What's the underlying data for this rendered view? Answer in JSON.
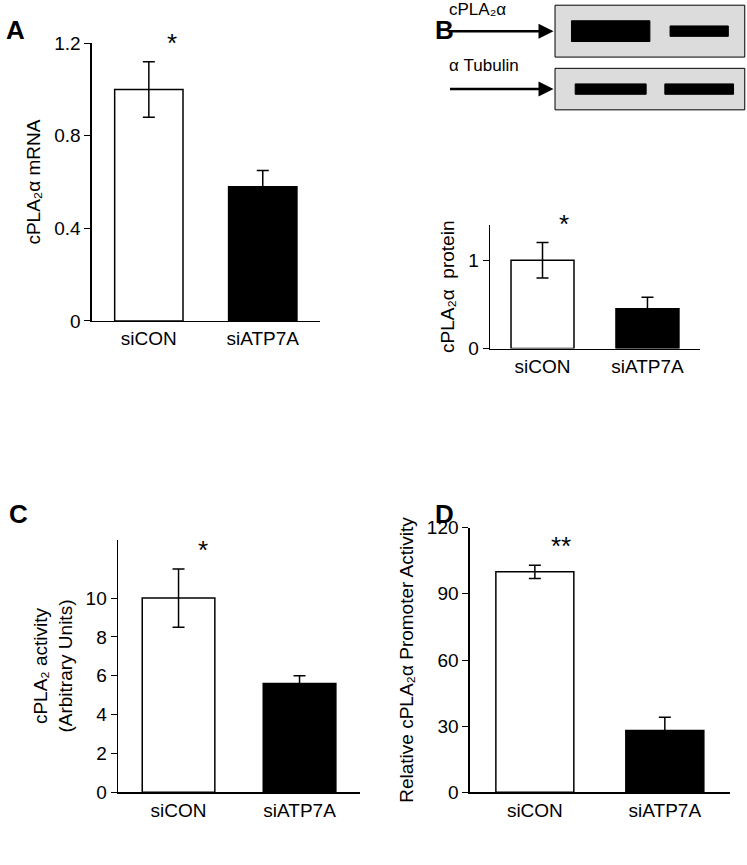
{
  "chart_data": [
    {
      "type": "bar",
      "panel": "A",
      "ylabel": "cPLA₂α mRNA",
      "categories": [
        "siCON",
        "siATP7A"
      ],
      "values": [
        1.0,
        0.58
      ],
      "errors": [
        0.12,
        0.07
      ],
      "colors": [
        "#ffffff",
        "#000000"
      ],
      "ylim": [
        0,
        1.2
      ],
      "yticks": [
        0,
        0.4,
        0.8,
        1.2
      ],
      "grid": false,
      "annotations": [
        {
          "x": "siCON",
          "text": "*"
        }
      ]
    },
    {
      "type": "bar",
      "panel": "B",
      "ylabel": "cPLA₂α  protein",
      "categories": [
        "siCON",
        "siATP7A"
      ],
      "values": [
        1.0,
        0.45
      ],
      "errors": [
        0.2,
        0.13
      ],
      "colors": [
        "#ffffff",
        "#000000"
      ],
      "ylim": [
        0,
        1.4
      ],
      "yticks": [
        0,
        1
      ],
      "grid": false,
      "annotations": [
        {
          "x": "siCON",
          "text": "*"
        }
      ],
      "blot": {
        "rows": [
          "cPLA₂α",
          "α Tubulin"
        ]
      }
    },
    {
      "type": "bar",
      "panel": "C",
      "ylabel": [
        "cPLA₂ activity",
        "(Arbitrary Units)"
      ],
      "categories": [
        "siCON",
        "siATP7A"
      ],
      "values": [
        10,
        5.6
      ],
      "errors": [
        1.5,
        0.4
      ],
      "colors": [
        "#ffffff",
        "#000000"
      ],
      "ylim": [
        0,
        13
      ],
      "yticks": [
        0,
        2,
        4,
        6,
        8,
        10
      ],
      "grid": false,
      "annotations": [
        {
          "x": "siCON",
          "text": "*"
        }
      ]
    },
    {
      "type": "bar",
      "panel": "D",
      "ylabel": "Relative cPLA₂α Promoter Activity",
      "categories": [
        "siCON",
        "siATP7A"
      ],
      "values": [
        100,
        28
      ],
      "errors": [
        3,
        6
      ],
      "colors": [
        "#ffffff",
        "#000000"
      ],
      "ylim": [
        0,
        120
      ],
      "yticks": [
        0,
        30,
        60,
        90,
        120
      ],
      "grid": false,
      "annotations": [
        {
          "x": "siCON",
          "text": "**"
        }
      ]
    }
  ]
}
